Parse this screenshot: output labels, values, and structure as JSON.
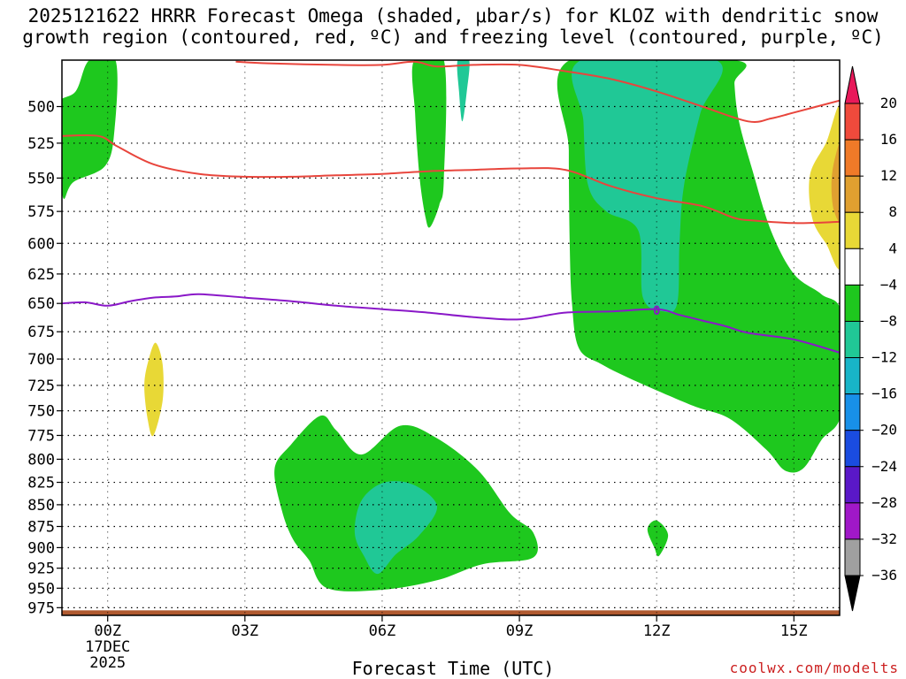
{
  "title_line1": "2025121622 HRRR Forecast Omega (shaded, μbar/s) for KLOZ with dendritic snow",
  "title_line2": "growth region (contoured, red, ºC) and freezing level (contoured, purple, ºC)",
  "xlabel": "Forecast Time (UTC)",
  "credit": "coolwx.com/modelts",
  "chart_data": {
    "type": "contour",
    "y_axis": {
      "variable": "pressure",
      "ticks": [
        500,
        525,
        550,
        575,
        600,
        625,
        650,
        675,
        700,
        725,
        750,
        775,
        800,
        825,
        850,
        875,
        900,
        925,
        950,
        975
      ],
      "range": [
        470,
        985
      ],
      "scale": "log"
    },
    "x_axis": {
      "range_hours": [
        -1.0,
        16.0
      ],
      "ticks": [
        {
          "h": 0,
          "label": "00Z",
          "sub1": "17DEC",
          "sub2": "2025"
        },
        {
          "h": 3,
          "label": "03Z"
        },
        {
          "h": 6,
          "label": "06Z"
        },
        {
          "h": 9,
          "label": "09Z"
        },
        {
          "h": 12,
          "label": "12Z"
        },
        {
          "h": 15,
          "label": "15Z"
        }
      ]
    },
    "colorbar": {
      "levels": [
        "20",
        "16",
        "12",
        "8",
        "4",
        "−4",
        "−8",
        "−12",
        "−16",
        "−20",
        "−24",
        "−28",
        "−32",
        "−36"
      ],
      "colors": [
        "#e8195a",
        "#f04a3c",
        "#f07a28",
        "#e0a030",
        "#e8d836",
        "#ffffff",
        "#1ec81e",
        "#20c896",
        "#18b4c8",
        "#1890e8",
        "#1a4ce0",
        "#5a18c8",
        "#a018c8",
        "#a0a0a0",
        "#000000"
      ],
      "top_arrow": "#e8195a",
      "bottom_arrow": "#000000"
    },
    "omega_regions": [
      {
        "color": "#1ec81e",
        "label": "-4 to -8",
        "points": [
          [
            -1.15,
            500
          ],
          [
            -1.05,
            535
          ],
          [
            -0.97,
            565
          ],
          [
            -0.75,
            553
          ],
          [
            -0.05,
            541
          ],
          [
            0.15,
            515
          ],
          [
            0.17,
            470
          ],
          [
            -0.4,
            470
          ],
          [
            -0.7,
            490
          ]
        ]
      },
      {
        "color": "#1ec81e",
        "label": "-4 to -8",
        "points": [
          [
            6.7,
            470
          ],
          [
            6.72,
            505
          ],
          [
            6.82,
            550
          ],
          [
            6.95,
            580
          ],
          [
            7.05,
            587
          ],
          [
            7.25,
            570
          ],
          [
            7.35,
            550
          ],
          [
            7.35,
            470
          ]
        ]
      },
      {
        "color": "#1ec81e",
        "label": "-4 to -8",
        "points": [
          [
            10.1,
            470
          ],
          [
            10.08,
            530
          ],
          [
            10.1,
            600
          ],
          [
            10.15,
            650
          ],
          [
            10.3,
            690
          ],
          [
            10.8,
            705
          ],
          [
            11.6,
            722
          ],
          [
            12.8,
            745
          ],
          [
            13.6,
            758
          ],
          [
            14.4,
            790
          ],
          [
            14.8,
            812
          ],
          [
            15.2,
            810
          ],
          [
            15.6,
            780
          ],
          [
            16.05,
            750
          ],
          [
            16.05,
            660
          ],
          [
            15.6,
            642
          ],
          [
            15.0,
            625
          ],
          [
            14.5,
            590
          ],
          [
            14.1,
            545
          ],
          [
            13.8,
            510
          ],
          [
            13.7,
            485
          ],
          [
            13.7,
            470
          ]
        ]
      },
      {
        "color": "#1ec81e",
        "label": "-4 to -8",
        "points": [
          [
            4.65,
            755
          ],
          [
            4.0,
            785
          ],
          [
            3.65,
            810
          ],
          [
            3.8,
            855
          ],
          [
            4.05,
            890
          ],
          [
            4.4,
            915
          ],
          [
            4.8,
            950
          ],
          [
            6.0,
            952
          ],
          [
            7.2,
            940
          ],
          [
            8.2,
            920
          ],
          [
            9.3,
            912
          ],
          [
            9.3,
            882
          ],
          [
            8.8,
            860
          ],
          [
            8.1,
            812
          ],
          [
            7.2,
            778
          ],
          [
            6.4,
            765
          ],
          [
            5.55,
            795
          ],
          [
            5.0,
            770
          ]
        ]
      },
      {
        "color": "#1ec81e",
        "label": "-4 to -8",
        "points": [
          [
            11.8,
            878
          ],
          [
            11.95,
            900
          ],
          [
            12.05,
            910
          ],
          [
            12.25,
            885
          ],
          [
            12.0,
            868
          ]
        ]
      },
      {
        "color": "#20c896",
        "label": "-8 to -12",
        "points": [
          [
            10.35,
            470
          ],
          [
            10.4,
            510
          ],
          [
            10.5,
            555
          ],
          [
            10.9,
            575
          ],
          [
            11.6,
            590
          ],
          [
            11.7,
            645
          ],
          [
            12.15,
            657
          ],
          [
            12.45,
            650
          ],
          [
            12.5,
            600
          ],
          [
            12.6,
            555
          ],
          [
            12.95,
            505
          ],
          [
            13.3,
            470
          ]
        ]
      },
      {
        "color": "#20c896",
        "label": "-8 to -12",
        "points": [
          [
            6.05,
            825
          ],
          [
            5.55,
            845
          ],
          [
            5.4,
            882
          ],
          [
            5.6,
            910
          ],
          [
            5.9,
            932
          ],
          [
            6.3,
            908
          ],
          [
            6.8,
            886
          ],
          [
            7.2,
            852
          ],
          [
            6.7,
            828
          ]
        ]
      },
      {
        "color": "#20c896",
        "label": "-8 to -12",
        "points": [
          [
            7.65,
            470
          ],
          [
            7.68,
            490
          ],
          [
            7.75,
            510
          ],
          [
            7.85,
            490
          ],
          [
            7.9,
            470
          ]
        ]
      },
      {
        "color": "#e8d836",
        "label": "4 to 8",
        "points": [
          [
            0.9,
            700
          ],
          [
            0.8,
            725
          ],
          [
            0.88,
            760
          ],
          [
            1.0,
            775
          ],
          [
            1.2,
            740
          ],
          [
            1.2,
            705
          ],
          [
            1.05,
            685
          ]
        ]
      },
      {
        "color": "#e8d836",
        "label": "4 to 8",
        "points": [
          [
            16.05,
            502
          ],
          [
            15.7,
            525
          ],
          [
            15.35,
            548
          ],
          [
            15.4,
            580
          ],
          [
            15.7,
            600
          ],
          [
            16.05,
            615
          ]
        ]
      },
      {
        "color": "#e0a030",
        "label": "8 to 12",
        "points": [
          [
            16.05,
            525
          ],
          [
            15.88,
            538
          ],
          [
            15.82,
            556
          ],
          [
            15.88,
            575
          ],
          [
            16.05,
            580
          ]
        ]
      }
    ],
    "dendritic_growth_lines": {
      "color": "#e8453c",
      "lines": [
        [
          [
            -1.0,
            520
          ],
          [
            -0.2,
            520
          ],
          [
            0.2,
            527
          ],
          [
            1.0,
            540
          ],
          [
            2.0,
            547
          ],
          [
            3.0,
            549
          ],
          [
            4.0,
            549
          ],
          [
            5.0,
            548
          ],
          [
            6.0,
            547
          ],
          [
            7.0,
            545
          ],
          [
            8.0,
            544
          ],
          [
            9.0,
            543
          ],
          [
            10.0,
            544
          ],
          [
            11.0,
            556
          ],
          [
            12.0,
            565
          ],
          [
            13.0,
            571
          ],
          [
            13.7,
            580
          ],
          [
            14.1,
            582
          ],
          [
            15.0,
            584
          ],
          [
            16.0,
            583
          ]
        ],
        [
          [
            2.8,
            471
          ],
          [
            3.5,
            472
          ],
          [
            5.0,
            473
          ],
          [
            6.0,
            473
          ],
          [
            6.7,
            471
          ],
          [
            7.2,
            474
          ],
          [
            8.0,
            473
          ],
          [
            9.0,
            473
          ],
          [
            10.0,
            477
          ],
          [
            11.0,
            482
          ],
          [
            12.0,
            490
          ],
          [
            13.0,
            500
          ],
          [
            14.0,
            510
          ],
          [
            14.5,
            508
          ],
          [
            15.0,
            504
          ],
          [
            16.0,
            496
          ]
        ]
      ]
    },
    "freezing_level": {
      "color": "#8a18c8",
      "label": "0",
      "label_at": [
        12.0,
        656
      ],
      "points": [
        [
          -1.0,
          650
        ],
        [
          -0.5,
          649
        ],
        [
          0.0,
          652
        ],
        [
          0.5,
          648
        ],
        [
          1.0,
          645
        ],
        [
          1.5,
          644
        ],
        [
          2.0,
          642
        ],
        [
          3.0,
          645
        ],
        [
          4.0,
          648
        ],
        [
          5.0,
          652
        ],
        [
          6.0,
          655
        ],
        [
          7.0,
          658
        ],
        [
          8.0,
          662
        ],
        [
          9.0,
          664
        ],
        [
          10.0,
          658
        ],
        [
          11.0,
          657
        ],
        [
          12.0,
          655
        ],
        [
          12.5,
          660
        ],
        [
          13.0,
          665
        ],
        [
          13.5,
          670
        ],
        [
          14.0,
          676
        ],
        [
          15.0,
          682
        ],
        [
          16.0,
          694
        ]
      ]
    },
    "surface_fill": {
      "color": "#b05a30",
      "top_hpa": 975
    }
  }
}
